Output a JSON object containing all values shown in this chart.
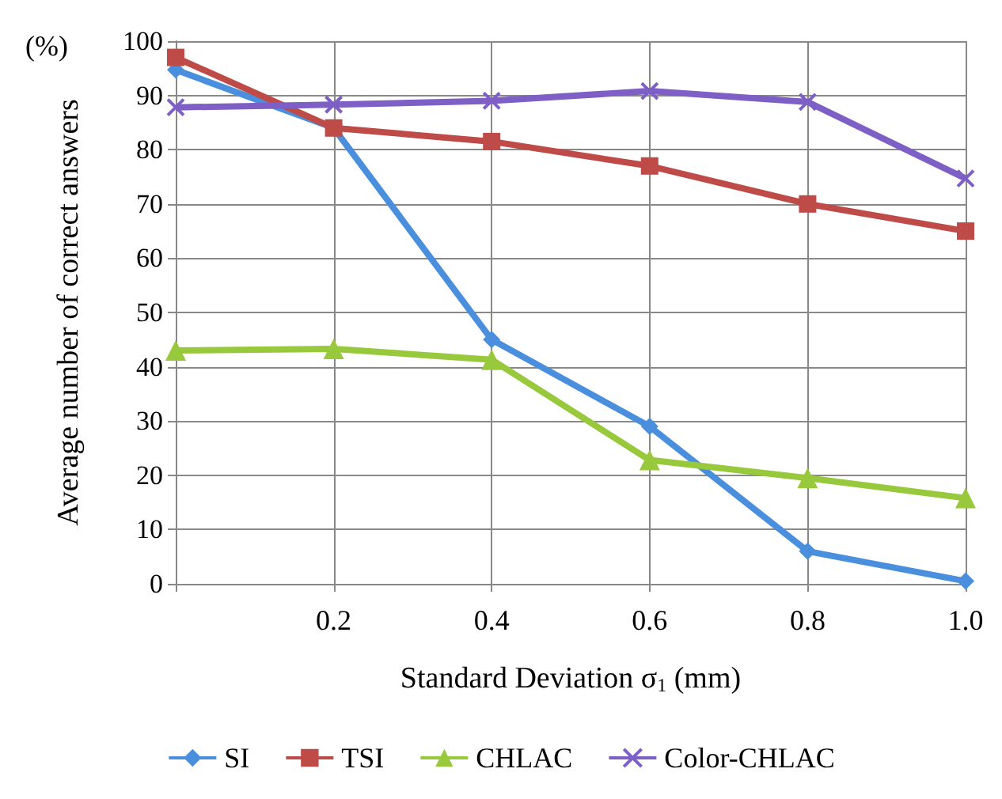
{
  "chart_data": {
    "type": "line",
    "xlabel": "Standard Deviation σ$_{1}$ (mm)",
    "ylabel": "Average number of correct answers",
    "annotations": [
      "(%)"
    ],
    "x": [
      0,
      0.2,
      0.4,
      0.6,
      0.8,
      1.0
    ],
    "xlim": [
      0,
      1
    ],
    "xticks": [
      {
        "value": 0,
        "label": null
      },
      0.2,
      0.4,
      0.6,
      0.8,
      {
        "value": 1,
        "label": "1.0"
      }
    ],
    "ylim": [
      0,
      100
    ],
    "yticks": [
      0,
      10,
      20,
      30,
      40,
      50,
      60,
      70,
      80,
      90,
      100
    ],
    "grid": true,
    "legend": "bottom",
    "series": [
      {
        "name": "SI",
        "color": "#4a8fdd",
        "marker": "diamond",
        "values": [
          94.7,
          84,
          45,
          29,
          6,
          0.5
        ]
      },
      {
        "name": "TSI",
        "color": "#be4b48",
        "marker": "square",
        "values": [
          97,
          84,
          81.5,
          77,
          70,
          65
        ]
      },
      {
        "name": "CHLAC",
        "color": "#98c93c",
        "marker": "triangle",
        "values": [
          43,
          43.3,
          41.3,
          22.8,
          19.5,
          15.8
        ]
      },
      {
        "name": "Color-CHLAC",
        "color": "#7d5fc5",
        "marker": "cross",
        "values": [
          87.8,
          88.3,
          89,
          90.8,
          88.8,
          74.7
        ]
      }
    ]
  }
}
